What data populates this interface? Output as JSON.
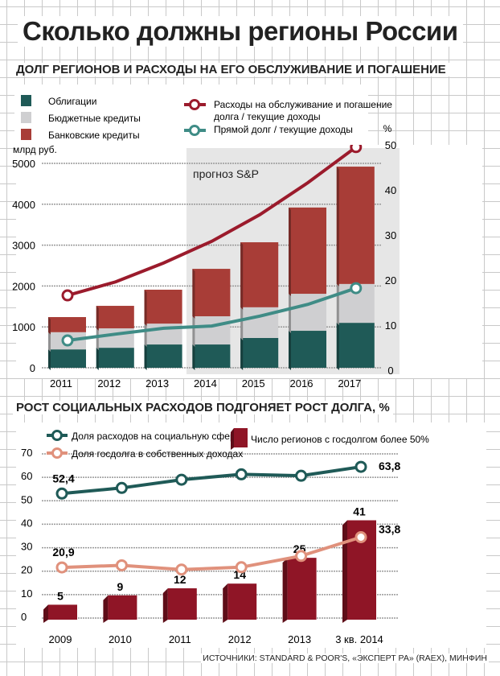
{
  "title": "Сколько должны регионы России",
  "source": "ИСТОЧНИКИ: STANDARD & POOR'S, «ЭКСПЕРТ РА» (RAEX), МИНФИН",
  "chart_data": [
    {
      "type": "bar",
      "stacked": true,
      "title": "ДОЛГ РЕГИОНОВ И РАСХОДЫ НА ЕГО ОБСЛУЖИВАНИЕ И ПОГАШЕНИЕ",
      "ylabel": "млрд руб.",
      "ylabel_right": "%",
      "ylim": [
        0,
        5000
      ],
      "yticks": [
        "0",
        "1000",
        "2000",
        "3000",
        "4000",
        "5000"
      ],
      "ylim_right": [
        0,
        50
      ],
      "yticks_right": [
        "0",
        "10",
        "20",
        "30",
        "40",
        "50"
      ],
      "categories": [
        "2011",
        "2012",
        "2013",
        "2014",
        "2015",
        "2016",
        "2017"
      ],
      "annotation": "прогноз S&P",
      "forecast_from": "2014",
      "grid": true,
      "legend_position": "top",
      "series": [
        {
          "name": "Облигации",
          "kind": "bar",
          "color": "#1f5a57",
          "values": [
            450,
            490,
            570,
            570,
            730,
            905,
            1100
          ]
        },
        {
          "name": "Бюджетные кредиты",
          "kind": "bar",
          "color": "#cfcfd1",
          "values": [
            420,
            475,
            510,
            690,
            750,
            905,
            950
          ]
        },
        {
          "name": "Банковские кредиты",
          "kind": "bar",
          "color": "#a83d37",
          "values": [
            370,
            550,
            830,
            1160,
            1590,
            2110,
            2870
          ]
        },
        {
          "name": "Расходы на обслуживание и погашение долга / текущие доходы",
          "kind": "line",
          "axis": "right",
          "color": "#9b1b2c",
          "values": [
            16.6,
            19.6,
            23.8,
            28.6,
            34.5,
            41.6,
            49.5
          ]
        },
        {
          "name": "Прямой долг / текущие доходы",
          "kind": "line",
          "axis": "right",
          "color": "#3f8c86",
          "values": [
            6.6,
            8.0,
            9.3,
            9.8,
            12.0,
            14.6,
            18.2
          ]
        }
      ]
    },
    {
      "type": "bar",
      "title": "РОСТ СОЦИАЛЬНЫХ РАСХОДОВ ПОДГОНЯЕТ РОСТ ДОЛГА, %",
      "ylim": [
        0,
        70
      ],
      "yticks": [
        "0",
        "10",
        "20",
        "30",
        "40",
        "50",
        "60",
        "70"
      ],
      "categories": [
        "2009",
        "2010",
        "2011",
        "2012",
        "2013",
        "3 кв. 2014"
      ],
      "grid": true,
      "legend_position": "top",
      "series": [
        {
          "name": "Доля расходов на социальную сферу",
          "kind": "line",
          "color": "#1f5a57",
          "values": [
            52.4,
            54.8,
            58.3,
            60.6,
            60.0,
            63.8
          ],
          "labels": [
            "52,4",
            "",
            "",
            "",
            "",
            "63,8"
          ]
        },
        {
          "name": "Доля госдолга в собственных доходах",
          "kind": "line",
          "color": "#e0917c",
          "values": [
            20.9,
            21.8,
            20.0,
            21.0,
            25.8,
            33.8
          ],
          "labels": [
            "20,9",
            "",
            "",
            "",
            "",
            "33,8"
          ]
        },
        {
          "name": "Число регионов с госдолгом более 50%",
          "kind": "bar",
          "color": "#8f1526",
          "values": [
            5,
            9,
            12,
            14,
            25,
            41
          ],
          "labels": [
            "5",
            "9",
            "12",
            "14",
            "25",
            "41"
          ]
        }
      ]
    }
  ]
}
